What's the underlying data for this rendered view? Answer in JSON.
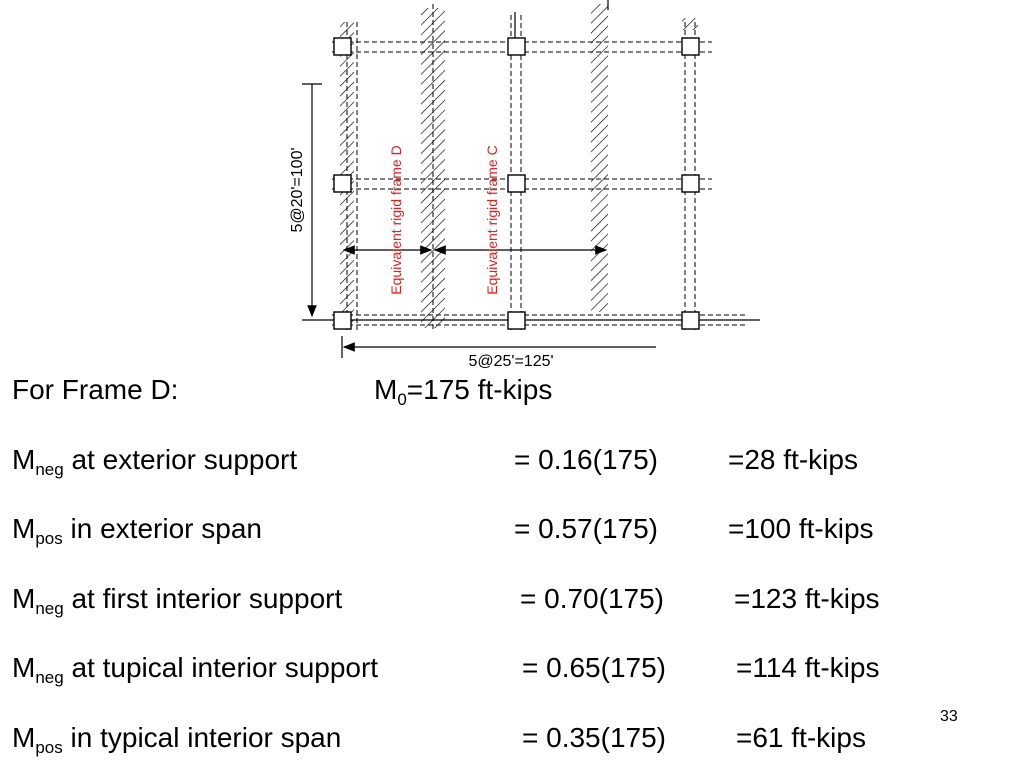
{
  "figure": {
    "vertical_dimension": "5@20'=100'",
    "horizontal_dimension": "5@25'=125'",
    "frame_d_label": "Equivalent rigid frame D",
    "frame_c_label": "Equivalent rigid frame C",
    "colors": {
      "lines": "#000000",
      "frame_labels": "#e02020"
    }
  },
  "heading": {
    "label": "For Frame D:",
    "m0_symbol": "M",
    "m0_sub": "0",
    "m0_value": "=175 ft-kips"
  },
  "rows": [
    {
      "sym": "M",
      "sub": "neg",
      "desc": "at exterior support",
      "expr": "= 0.16(175)",
      "result": "=28 ft-kips"
    },
    {
      "sym": "M",
      "sub": "pos",
      "desc": "in exterior span",
      "expr": "= 0.57(175)",
      "result": "=100 ft-kips"
    },
    {
      "sym": "M",
      "sub": "neg",
      "desc": "at first interior support",
      "expr": "= 0.70(175)",
      "result": "=123 ft-kips"
    },
    {
      "sym": "M",
      "sub": "neg",
      "desc": "at tupical interior support",
      "expr": "= 0.65(175)",
      "result": "=114 ft-kips"
    },
    {
      "sym": "M",
      "sub": "pos",
      "desc": "in typical interior span",
      "expr": "= 0.35(175)",
      "result": "=61 ft-kips"
    }
  ],
  "page_number": "33"
}
